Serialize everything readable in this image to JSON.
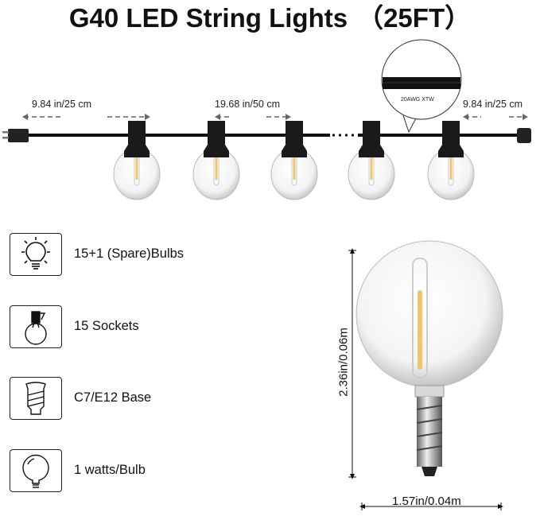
{
  "title": {
    "main": "G40 LED String Lights",
    "length": "（25FT）"
  },
  "string_diagram": {
    "left_spacing": "9.84 in/25 cm",
    "bulb_spacing": "19.68 in/50 cm",
    "right_spacing": "9.84 in/25 cm",
    "wire_callout": "20AWG XTW"
  },
  "features": [
    {
      "icon": "bulb-rays-icon",
      "label": "15+1 (Spare)Bulbs"
    },
    {
      "icon": "socket-bulb-icon",
      "label": "15 Sockets"
    },
    {
      "icon": "screw-base-icon",
      "label": "C7/E12 Base"
    },
    {
      "icon": "globe-bulb-icon",
      "label": "1 watts/Bulb"
    }
  ],
  "bulb_dimensions": {
    "height": "2.36in/0.06m",
    "width": "1.57in/0.04m"
  },
  "colors": {
    "socket": "#1a1a1a",
    "filament": "#f3c46a",
    "cable": "#111111"
  }
}
